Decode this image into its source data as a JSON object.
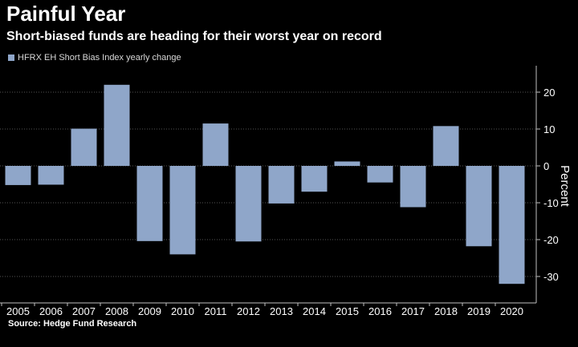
{
  "header": {
    "title": "Painful Year",
    "subtitle": "Short-biased funds are heading for their worst year on record"
  },
  "legend": {
    "label": "HFRX EH Short Bias Index yearly change"
  },
  "footer": {
    "source": "Source: Hedge Fund Research"
  },
  "colors": {
    "bar": "#8fa6c9",
    "background": "#000000",
    "grid": "#555555",
    "axis": "#bfbfbf"
  },
  "chart_data": {
    "type": "bar",
    "title": "Painful Year",
    "xlabel": "",
    "ylabel": "Percent",
    "categories": [
      "2005",
      "2006",
      "2007",
      "2008",
      "2009",
      "2010",
      "2011",
      "2012",
      "2013",
      "2014",
      "2015",
      "2016",
      "2017",
      "2018",
      "2019",
      "2020"
    ],
    "series": [
      {
        "name": "HFRX EH Short Bias Index yearly change",
        "values": [
          -5.2,
          -5.1,
          10.1,
          22.0,
          -20.4,
          -24.0,
          11.5,
          -20.5,
          -10.2,
          -7.0,
          1.2,
          -4.5,
          -11.2,
          10.8,
          -21.8,
          -32.0
        ]
      }
    ],
    "ylim": [
      -37,
      27
    ],
    "yticks": [
      20,
      10,
      0,
      -10,
      -20,
      -30
    ],
    "ytick_labels": [
      "20",
      "10",
      "0",
      "-10",
      "-20",
      "-30"
    ],
    "grid": true,
    "legend_position": "top-left"
  }
}
